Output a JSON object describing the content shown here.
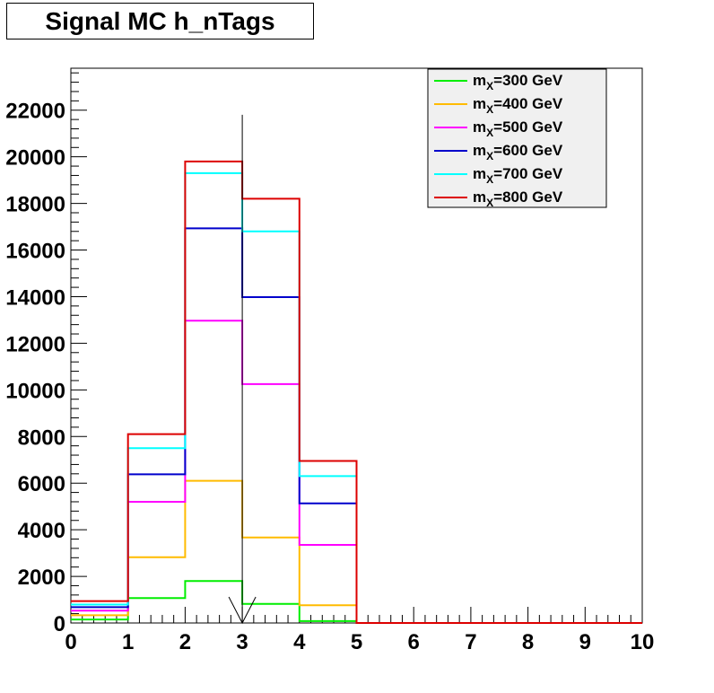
{
  "title": "Signal MC h_nTags",
  "chart_data": {
    "type": "histogram",
    "title": "Signal MC h_nTags",
    "xlabel": "",
    "ylabel": "",
    "xlim": [
      0,
      10
    ],
    "ylim": [
      0,
      23800
    ],
    "bin_edges": [
      0,
      1,
      2,
      3,
      4,
      5,
      6,
      7,
      8,
      9,
      10
    ],
    "x_ticks": [
      "0",
      "1",
      "2",
      "3",
      "4",
      "5",
      "6",
      "7",
      "8",
      "9",
      "10"
    ],
    "y_ticks": [
      "0",
      "2000",
      "4000",
      "6000",
      "8000",
      "10000",
      "12000",
      "14000",
      "16000",
      "18000",
      "20000",
      "22000"
    ],
    "y_tick_values": [
      0,
      2000,
      4000,
      6000,
      8000,
      10000,
      12000,
      14000,
      16000,
      18000,
      20000,
      22000
    ],
    "series": [
      {
        "label_main": "m",
        "label_sub": "X",
        "label_rest": "=300 GeV",
        "color": "#00ee00",
        "values": [
          150,
          1070,
          1800,
          820,
          80,
          0,
          0,
          0,
          0,
          0
        ]
      },
      {
        "label_main": "m",
        "label_sub": "X",
        "label_rest": "=400 GeV",
        "color": "#ffbb00",
        "values": [
          330,
          2820,
          6100,
          3670,
          760,
          0,
          0,
          0,
          0,
          0
        ]
      },
      {
        "label_main": "m",
        "label_sub": "X",
        "label_rest": "=500 GeV",
        "color": "#ff00ff",
        "values": [
          530,
          5200,
          12970,
          10250,
          3350,
          0,
          0,
          0,
          0,
          0
        ]
      },
      {
        "label_main": "m",
        "label_sub": "X",
        "label_rest": "=600 GeV",
        "color": "#0000cc",
        "values": [
          680,
          6380,
          16930,
          13980,
          5130,
          0,
          0,
          0,
          0,
          0
        ]
      },
      {
        "label_main": "m",
        "label_sub": "X",
        "label_rest": "=700 GeV",
        "color": "#00ffff",
        "values": [
          790,
          7500,
          19300,
          16800,
          6300,
          0,
          0,
          0,
          0,
          0
        ]
      },
      {
        "label_main": "m",
        "label_sub": "X",
        "label_rest": "=800 GeV",
        "color": "#dd0000",
        "values": [
          940,
          8100,
          19800,
          18200,
          6950,
          0,
          0,
          0,
          0,
          0
        ]
      }
    ],
    "cut_line": {
      "x": 3,
      "y_top": 21800
    },
    "cut_arrow": {
      "x": 3
    },
    "legend_position": "top-right",
    "grid": false
  }
}
